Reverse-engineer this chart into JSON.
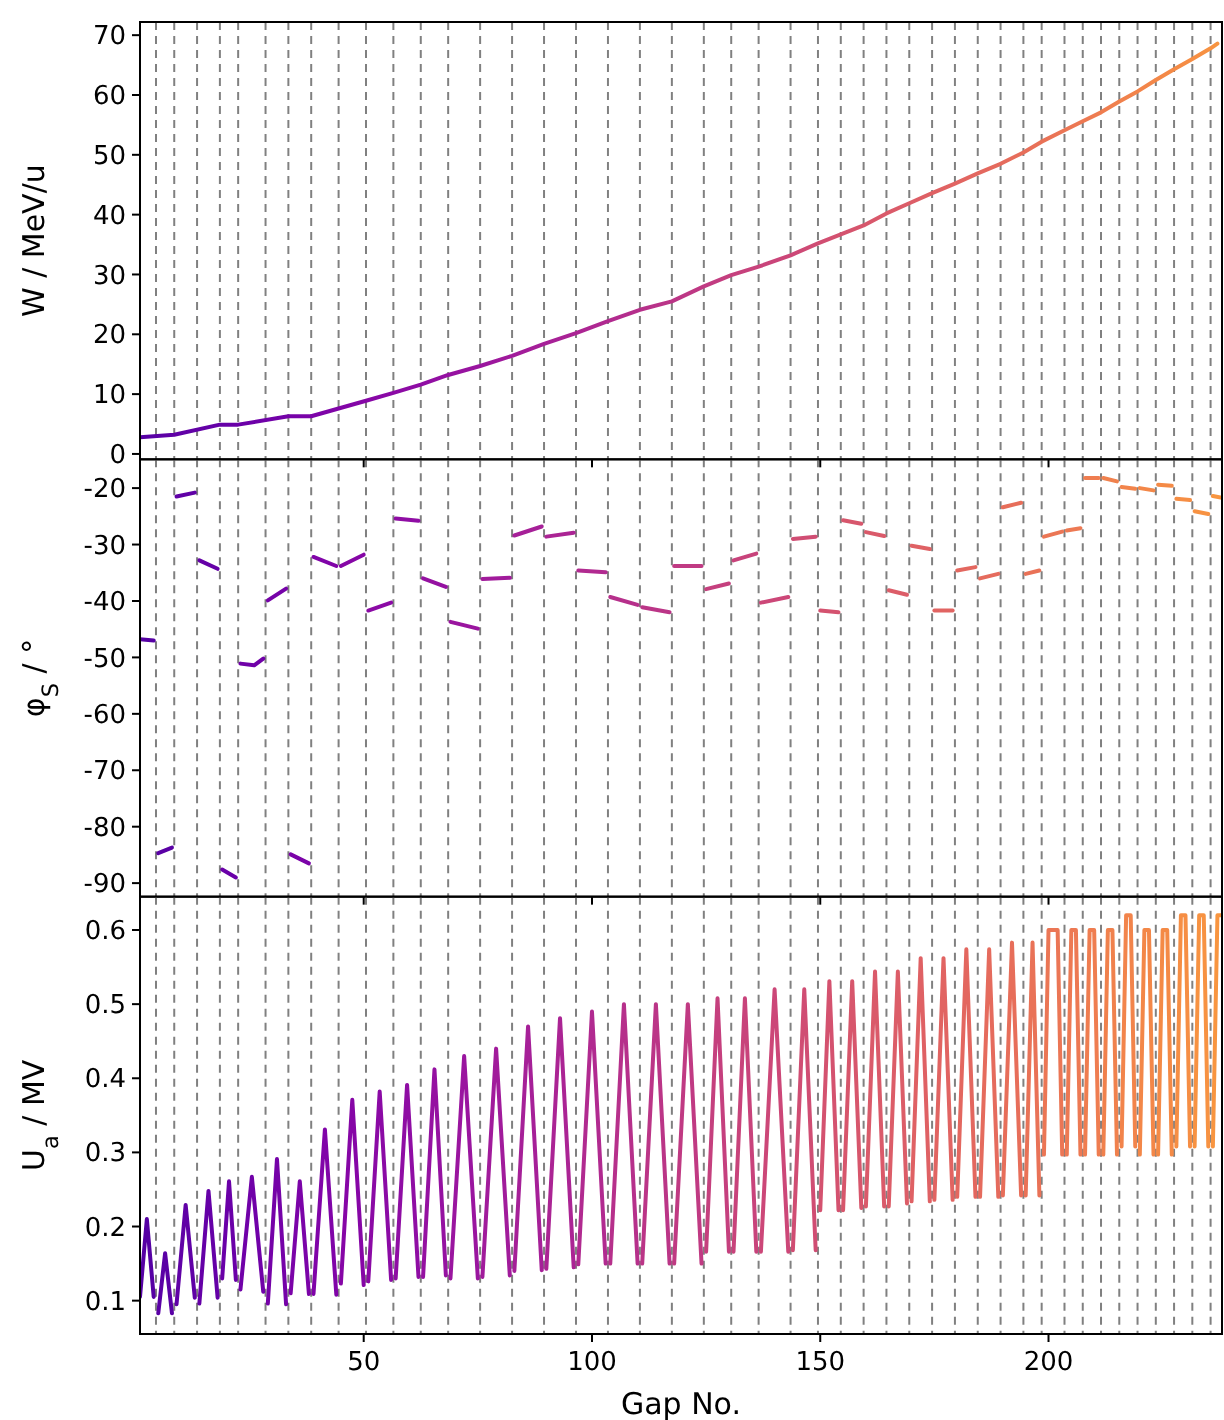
{
  "chart_data": [
    {
      "type": "line",
      "ylabel": "W / MeV/u",
      "xlim": [
        1,
        238
      ],
      "xticks": [
        50,
        100,
        150,
        200
      ],
      "ylim": [
        -0.9,
        72.2
      ],
      "yticks": [
        0,
        10,
        20,
        30,
        40,
        50,
        60,
        70
      ],
      "tick_labels": "y",
      "series": [
        {
          "x": [
            1,
            8.5,
            18.5,
            22.5,
            33.5,
            38.5,
            50.5,
            56.5,
            62.5,
            68.5,
            75.5,
            82.5,
            89.5,
            96.5,
            103.5,
            110.5,
            117.5,
            124.5,
            130.5,
            136.5,
            143.5,
            149.5,
            154.5,
            159.5,
            164.5,
            169.5,
            174.5,
            179.5,
            184.5,
            189.5,
            194.5,
            198.5,
            203.5,
            207.5,
            211.5,
            215.5,
            219.5,
            223.5,
            227.5,
            231.5,
            235.5,
            237
          ],
          "values": [
            2.8,
            3.2,
            4.9,
            4.9,
            6.3,
            6.3,
            8.9,
            10.2,
            11.6,
            13.2,
            14.7,
            16.4,
            18.4,
            20.2,
            22.2,
            24.1,
            25.5,
            28.0,
            29.9,
            31.3,
            33.2,
            35.2,
            36.7,
            38.2,
            40.2,
            41.9,
            43.6,
            45.2,
            46.9,
            48.5,
            50.4,
            52.2,
            54.1,
            55.6,
            57.1,
            58.9,
            60.6,
            62.5,
            64.3,
            66.0,
            67.8,
            68.6
          ],
          "colors": [
            "#5601a4",
            "#6001a6",
            "#6500a7",
            "#6a00a8",
            "#7502a8",
            "#7b03a8",
            "#8606a6",
            "#8b0aa5",
            "#8f0da4",
            "#9511a1",
            "#9a159f",
            "#a11b9b",
            "#a62098",
            "#ab2494",
            "#b12a90",
            "#b6308b",
            "#bb3587",
            "#c03a83",
            "#c5407e",
            "#c8437b",
            "#cc4778",
            "#d04d73",
            "#d4526f",
            "#d7566c",
            "#da5a6a",
            "#dc5d68",
            "#df6164",
            "#e16462",
            "#e3675f",
            "#e56b5d",
            "#e76e5a",
            "#e97257",
            "#eb7655",
            "#ed7953",
            "#ef7d50",
            "#f0814d",
            "#f2844b",
            "#f38748",
            "#f48a46",
            "#f68e44",
            "#f79242",
            "#f89540"
          ]
        }
      ],
      "ref_lines": [
        {
          "axis": "x",
          "value": 4.5
        },
        {
          "axis": "x",
          "value": 8.5
        },
        {
          "axis": "x",
          "value": 13.5
        },
        {
          "axis": "x",
          "value": 18.5
        },
        {
          "axis": "x",
          "value": 22.5
        },
        {
          "axis": "x",
          "value": 28.5
        },
        {
          "axis": "x",
          "value": 33.5
        },
        {
          "axis": "x",
          "value": 38.5
        },
        {
          "axis": "x",
          "value": 44.5
        },
        {
          "axis": "x",
          "value": 50.5
        },
        {
          "axis": "x",
          "value": 56.5
        },
        {
          "axis": "x",
          "value": 62.5
        },
        {
          "axis": "x",
          "value": 68.5
        },
        {
          "axis": "x",
          "value": 75.5
        },
        {
          "axis": "x",
          "value": 82.5
        },
        {
          "axis": "x",
          "value": 89.5
        },
        {
          "axis": "x",
          "value": 96.5
        },
        {
          "axis": "x",
          "value": 103.5
        },
        {
          "axis": "x",
          "value": 110.5
        },
        {
          "axis": "x",
          "value": 117.5
        },
        {
          "axis": "x",
          "value": 124.5
        },
        {
          "axis": "x",
          "value": 130.5
        },
        {
          "axis": "x",
          "value": 136.5
        },
        {
          "axis": "x",
          "value": 143.5
        },
        {
          "axis": "x",
          "value": 149.5
        },
        {
          "axis": "x",
          "value": 154.5
        },
        {
          "axis": "x",
          "value": 159.5
        },
        {
          "axis": "x",
          "value": 164.5
        },
        {
          "axis": "x",
          "value": 169.5
        },
        {
          "axis": "x",
          "value": 174.5
        },
        {
          "axis": "x",
          "value": 179.5
        },
        {
          "axis": "x",
          "value": 184.5
        },
        {
          "axis": "x",
          "value": 189.5
        },
        {
          "axis": "x",
          "value": 194.5
        },
        {
          "axis": "x",
          "value": 198.5
        },
        {
          "axis": "x",
          "value": 203.5
        },
        {
          "axis": "x",
          "value": 207.5
        },
        {
          "axis": "x",
          "value": 211.5
        },
        {
          "axis": "x",
          "value": 215.5
        },
        {
          "axis": "x",
          "value": 219.5
        },
        {
          "axis": "x",
          "value": 223.5
        },
        {
          "axis": "x",
          "value": 227.5
        },
        {
          "axis": "x",
          "value": 231.5
        },
        {
          "axis": "x",
          "value": 235.5
        }
      ]
    },
    {
      "type": "line",
      "ylabel": "φ$_{S}$ / °",
      "xlim": [
        1,
        238
      ],
      "xticks": [
        50,
        100,
        150,
        200
      ],
      "ylim": [
        -92.4,
        -14.9
      ],
      "yticks": [
        -20,
        -30,
        -40,
        -50,
        -60,
        -70,
        -80,
        -90
      ],
      "tick_labels": "y",
      "series": [
        {
          "color": "#5601a4",
          "x": [
            1,
            4
          ],
          "values": [
            -46.8,
            -47.0
          ]
        },
        {
          "color": "#5a01a5",
          "x": [
            5,
            8
          ],
          "values": [
            -84.7,
            -83.7
          ]
        },
        {
          "color": "#6001a6",
          "x": [
            9,
            13
          ],
          "values": [
            -21.5,
            -20.8
          ]
        },
        {
          "color": "#6500a7",
          "x": [
            14,
            18
          ],
          "values": [
            -32.8,
            -34.3
          ]
        },
        {
          "color": "#6a00a8",
          "x": [
            19,
            22
          ],
          "values": [
            -87.6,
            -89.0
          ]
        },
        {
          "color": "#7001a8",
          "x": [
            23,
            26,
            28
          ],
          "values": [
            -51.1,
            -51.4,
            -50.2
          ]
        },
        {
          "color": "#7502a8",
          "x": [
            29,
            33
          ],
          "values": [
            -39.9,
            -37.8
          ]
        },
        {
          "color": "#7b03a8",
          "x": [
            34,
            38
          ],
          "values": [
            -84.9,
            -86.5
          ]
        },
        {
          "color": "#8004a8",
          "x": [
            39,
            44
          ],
          "values": [
            -32.2,
            -33.8
          ]
        },
        {
          "color": "#8606a6",
          "x": [
            45,
            50
          ],
          "values": [
            -33.8,
            -31.8
          ]
        },
        {
          "color": "#8b0aa5",
          "x": [
            51,
            56
          ],
          "values": [
            -41.7,
            -40.3
          ]
        },
        {
          "color": "#8f0da4",
          "x": [
            57,
            62
          ],
          "values": [
            -25.4,
            -25.8
          ]
        },
        {
          "color": "#9511a1",
          "x": [
            63,
            68
          ],
          "values": [
            -36.0,
            -37.5
          ]
        },
        {
          "color": "#9a159f",
          "x": [
            69,
            75
          ],
          "values": [
            -43.7,
            -44.9
          ]
        },
        {
          "color": "#a11b9b",
          "x": [
            76,
            82
          ],
          "values": [
            -36.1,
            -35.9
          ]
        },
        {
          "color": "#a62098",
          "x": [
            83,
            89
          ],
          "values": [
            -28.4,
            -26.8
          ]
        },
        {
          "color": "#ab2494",
          "x": [
            90,
            96
          ],
          "values": [
            -28.6,
            -27.9
          ]
        },
        {
          "color": "#b12a90",
          "x": [
            97,
            103
          ],
          "values": [
            -34.6,
            -34.9
          ]
        },
        {
          "color": "#b6308b",
          "x": [
            104,
            110
          ],
          "values": [
            -39.3,
            -40.7
          ]
        },
        {
          "color": "#bb3587",
          "x": [
            111,
            117
          ],
          "values": [
            -41.1,
            -42.0
          ]
        },
        {
          "color": "#c03a83",
          "x": [
            118,
            124
          ],
          "values": [
            -33.8,
            -33.8
          ]
        },
        {
          "color": "#c5407e",
          "x": [
            125,
            130
          ],
          "values": [
            -37.9,
            -36.9
          ]
        },
        {
          "color": "#c8437b",
          "x": [
            131,
            136
          ],
          "values": [
            -32.8,
            -31.6
          ]
        },
        {
          "color": "#cc4778",
          "x": [
            137,
            143
          ],
          "values": [
            -40.3,
            -39.3
          ]
        },
        {
          "color": "#d04d73",
          "x": [
            144,
            149
          ],
          "values": [
            -29.0,
            -28.6
          ]
        },
        {
          "color": "#d4526f",
          "x": [
            150,
            154
          ],
          "values": [
            -41.7,
            -42.0
          ]
        },
        {
          "color": "#d7566c",
          "x": [
            155,
            159
          ],
          "values": [
            -25.7,
            -26.3
          ]
        },
        {
          "color": "#da5a6a",
          "x": [
            160,
            164
          ],
          "values": [
            -27.8,
            -28.5
          ]
        },
        {
          "color": "#dc5d68",
          "x": [
            165,
            169
          ],
          "values": [
            -38.1,
            -38.9
          ]
        },
        {
          "color": "#df6164",
          "x": [
            170,
            174
          ],
          "values": [
            -30.2,
            -30.8
          ]
        },
        {
          "color": "#e16462",
          "x": [
            175,
            179
          ],
          "values": [
            -41.7,
            -41.7
          ]
        },
        {
          "color": "#e3675f",
          "x": [
            180,
            184
          ],
          "values": [
            -34.6,
            -34.0
          ]
        },
        {
          "color": "#e56b5d",
          "x": [
            185,
            189
          ],
          "values": [
            -36.0,
            -35.2
          ]
        },
        {
          "color": "#e76e5a",
          "x": [
            190,
            194
          ],
          "values": [
            -23.4,
            -22.6
          ]
        },
        {
          "color": "#e97257",
          "x": [
            195,
            198
          ],
          "values": [
            -35.2,
            -34.6
          ]
        },
        {
          "color": "#eb7655",
          "x": [
            199,
            203
          ],
          "values": [
            -28.6,
            -27.7
          ]
        },
        {
          "color": "#ed7953",
          "x": [
            204,
            207
          ],
          "values": [
            -27.5,
            -27.1
          ]
        },
        {
          "color": "#ef7d50",
          "x": [
            208,
            211
          ],
          "values": [
            -18.2,
            -18.2
          ]
        },
        {
          "color": "#f0814d",
          "x": [
            212,
            215
          ],
          "values": [
            -18.2,
            -18.8
          ]
        },
        {
          "color": "#f2844b",
          "x": [
            216,
            219
          ],
          "values": [
            -19.8,
            -20.1
          ]
        },
        {
          "color": "#f38748",
          "x": [
            220,
            223
          ],
          "values": [
            -20.0,
            -20.4
          ]
        },
        {
          "color": "#f48a46",
          "x": [
            224,
            227
          ],
          "values": [
            -19.4,
            -19.6
          ]
        },
        {
          "color": "#f68e44",
          "x": [
            228,
            231
          ],
          "values": [
            -21.9,
            -22.1
          ]
        },
        {
          "color": "#f79242",
          "x": [
            232,
            235
          ],
          "values": [
            -24.1,
            -24.6
          ]
        },
        {
          "color": "#f89540",
          "x": [
            236,
            238
          ],
          "values": [
            -21.4,
            -21.7
          ]
        }
      ],
      "ref_lines": [
        {
          "axis": "x",
          "value": 4.5
        },
        {
          "axis": "x",
          "value": 8.5
        },
        {
          "axis": "x",
          "value": 13.5
        },
        {
          "axis": "x",
          "value": 18.5
        },
        {
          "axis": "x",
          "value": 22.5
        },
        {
          "axis": "x",
          "value": 28.5
        },
        {
          "axis": "x",
          "value": 33.5
        },
        {
          "axis": "x",
          "value": 38.5
        },
        {
          "axis": "x",
          "value": 44.5
        },
        {
          "axis": "x",
          "value": 50.5
        },
        {
          "axis": "x",
          "value": 56.5
        },
        {
          "axis": "x",
          "value": 62.5
        },
        {
          "axis": "x",
          "value": 68.5
        },
        {
          "axis": "x",
          "value": 75.5
        },
        {
          "axis": "x",
          "value": 82.5
        },
        {
          "axis": "x",
          "value": 89.5
        },
        {
          "axis": "x",
          "value": 96.5
        },
        {
          "axis": "x",
          "value": 103.5
        },
        {
          "axis": "x",
          "value": 110.5
        },
        {
          "axis": "x",
          "value": 117.5
        },
        {
          "axis": "x",
          "value": 124.5
        },
        {
          "axis": "x",
          "value": 130.5
        },
        {
          "axis": "x",
          "value": 136.5
        },
        {
          "axis": "x",
          "value": 143.5
        },
        {
          "axis": "x",
          "value": 149.5
        },
        {
          "axis": "x",
          "value": 154.5
        },
        {
          "axis": "x",
          "value": 159.5
        },
        {
          "axis": "x",
          "value": 164.5
        },
        {
          "axis": "x",
          "value": 169.5
        },
        {
          "axis": "x",
          "value": 174.5
        },
        {
          "axis": "x",
          "value": 179.5
        },
        {
          "axis": "x",
          "value": 184.5
        },
        {
          "axis": "x",
          "value": 189.5
        },
        {
          "axis": "x",
          "value": 194.5
        },
        {
          "axis": "x",
          "value": 198.5
        },
        {
          "axis": "x",
          "value": 203.5
        },
        {
          "axis": "x",
          "value": 207.5
        },
        {
          "axis": "x",
          "value": 211.5
        },
        {
          "axis": "x",
          "value": 215.5
        },
        {
          "axis": "x",
          "value": 219.5
        },
        {
          "axis": "x",
          "value": 223.5
        },
        {
          "axis": "x",
          "value": 227.5
        },
        {
          "axis": "x",
          "value": 231.5
        },
        {
          "axis": "x",
          "value": 235.5
        }
      ]
    },
    {
      "type": "line",
      "xlabel": "Gap No.",
      "ylabel": "U$_{a}$ / MV",
      "xlim": [
        1,
        238
      ],
      "xticks": [
        50,
        100,
        150,
        200
      ],
      "ylim": [
        0.055,
        0.645
      ],
      "yticks": [
        0.1,
        0.2,
        0.3,
        0.4,
        0.5,
        0.6
      ],
      "series": [
        {
          "color": "#5601a4",
          "x": [
            1,
            2.5,
            4
          ],
          "values": [
            0.105,
            0.21,
            0.105
          ]
        },
        {
          "color": "#5a01a5",
          "x": [
            5,
            6.5,
            8
          ],
          "values": [
            0.083,
            0.164,
            0.083
          ]
        },
        {
          "color": "#6001a6",
          "x": [
            9,
            11,
            13
          ],
          "values": [
            0.095,
            0.229,
            0.104
          ]
        },
        {
          "color": "#6500a7",
          "x": [
            14,
            16,
            18
          ],
          "values": [
            0.096,
            0.248,
            0.104
          ]
        },
        {
          "color": "#6a00a8",
          "x": [
            19,
            20.5,
            22
          ],
          "values": [
            0.13,
            0.261,
            0.128
          ]
        },
        {
          "color": "#7001a8",
          "x": [
            23,
            25.5,
            28
          ],
          "values": [
            0.115,
            0.267,
            0.112
          ]
        },
        {
          "color": "#7502a8",
          "x": [
            29,
            31,
            33
          ],
          "values": [
            0.096,
            0.291,
            0.095
          ]
        },
        {
          "color": "#7b03a8",
          "x": [
            34,
            36,
            38
          ],
          "values": [
            0.11,
            0.261,
            0.109
          ]
        },
        {
          "color": "#8004a8",
          "x": [
            39,
            41.5,
            44
          ],
          "values": [
            0.109,
            0.331,
            0.108
          ]
        },
        {
          "color": "#8606a6",
          "x": [
            45,
            47.5,
            50
          ],
          "values": [
            0.123,
            0.371,
            0.121
          ]
        },
        {
          "color": "#8b0aa5",
          "x": [
            51,
            53.5,
            56
          ],
          "values": [
            0.126,
            0.382,
            0.128
          ]
        },
        {
          "color": "#8f0da4",
          "x": [
            57,
            59.5,
            62
          ],
          "values": [
            0.13,
            0.391,
            0.132
          ]
        },
        {
          "color": "#9511a1",
          "x": [
            63,
            65.5,
            68
          ],
          "values": [
            0.132,
            0.412,
            0.134
          ]
        },
        {
          "color": "#9a159f",
          "x": [
            69,
            72,
            75
          ],
          "values": [
            0.13,
            0.43,
            0.13
          ]
        },
        {
          "color": "#a11b9b",
          "x": [
            76,
            79,
            82
          ],
          "values": [
            0.132,
            0.44,
            0.134
          ]
        },
        {
          "color": "#a62098",
          "x": [
            83,
            86,
            89
          ],
          "values": [
            0.14,
            0.47,
            0.141
          ]
        },
        {
          "color": "#ab2494",
          "x": [
            90,
            93,
            96
          ],
          "values": [
            0.143,
            0.481,
            0.145
          ]
        },
        {
          "color": "#b12a90",
          "x": [
            97,
            100,
            103
          ],
          "values": [
            0.149,
            0.49,
            0.15
          ]
        },
        {
          "color": "#b6308b",
          "x": [
            104,
            107,
            110
          ],
          "values": [
            0.15,
            0.5,
            0.15
          ]
        },
        {
          "color": "#bb3587",
          "x": [
            111,
            114,
            117
          ],
          "values": [
            0.15,
            0.5,
            0.15
          ]
        },
        {
          "color": "#c03a83",
          "x": [
            118,
            121,
            124
          ],
          "values": [
            0.15,
            0.5,
            0.15
          ]
        },
        {
          "color": "#c5407e",
          "x": [
            125,
            127.5,
            130
          ],
          "values": [
            0.166,
            0.508,
            0.166
          ]
        },
        {
          "color": "#c8437b",
          "x": [
            131,
            133.5,
            136
          ],
          "values": [
            0.166,
            0.508,
            0.166
          ]
        },
        {
          "color": "#cc4778",
          "x": [
            137,
            140,
            143
          ],
          "values": [
            0.166,
            0.52,
            0.166
          ]
        },
        {
          "color": "#d04d73",
          "x": [
            144,
            146.5,
            149
          ],
          "values": [
            0.168,
            0.52,
            0.168
          ]
        },
        {
          "color": "#d4526f",
          "x": [
            150,
            152,
            154
          ],
          "values": [
            0.222,
            0.531,
            0.222
          ]
        },
        {
          "color": "#d7566c",
          "x": [
            155,
            157,
            159
          ],
          "values": [
            0.222,
            0.531,
            0.225
          ]
        },
        {
          "color": "#da5a6a",
          "x": [
            160,
            162,
            164
          ],
          "values": [
            0.227,
            0.544,
            0.227
          ]
        },
        {
          "color": "#dc5d68",
          "x": [
            165,
            167,
            169
          ],
          "values": [
            0.227,
            0.544,
            0.231
          ]
        },
        {
          "color": "#df6164",
          "x": [
            170,
            172,
            174
          ],
          "values": [
            0.234,
            0.562,
            0.234
          ]
        },
        {
          "color": "#e16462",
          "x": [
            175,
            177,
            179
          ],
          "values": [
            0.236,
            0.562,
            0.236
          ]
        },
        {
          "color": "#e3675f",
          "x": [
            180,
            182,
            184
          ],
          "values": [
            0.24,
            0.574,
            0.24
          ]
        },
        {
          "color": "#e56b5d",
          "x": [
            185,
            187,
            189
          ],
          "values": [
            0.24,
            0.574,
            0.24
          ]
        },
        {
          "color": "#e76e5a",
          "x": [
            190,
            192,
            194
          ],
          "values": [
            0.242,
            0.583,
            0.242
          ]
        },
        {
          "color": "#e97257",
          "x": [
            195,
            196.5,
            198
          ],
          "values": [
            0.242,
            0.583,
            0.242
          ]
        },
        {
          "color": "#eb7655",
          "x": [
            199,
            200,
            202,
            203
          ],
          "values": [
            0.297,
            0.6,
            0.6,
            0.297
          ]
        },
        {
          "color": "#ed7953",
          "x": [
            204,
            205,
            206,
            207
          ],
          "values": [
            0.297,
            0.6,
            0.6,
            0.297
          ]
        },
        {
          "color": "#ef7d50",
          "x": [
            208,
            209,
            210,
            211
          ],
          "values": [
            0.297,
            0.6,
            0.6,
            0.297
          ]
        },
        {
          "color": "#f0814d",
          "x": [
            212,
            213,
            214,
            215
          ],
          "values": [
            0.297,
            0.6,
            0.6,
            0.297
          ]
        },
        {
          "color": "#f2844b",
          "x": [
            216,
            217,
            218,
            219
          ],
          "values": [
            0.308,
            0.62,
            0.62,
            0.308
          ]
        },
        {
          "color": "#f38748",
          "x": [
            220,
            221,
            222,
            223
          ],
          "values": [
            0.297,
            0.6,
            0.6,
            0.297
          ]
        },
        {
          "color": "#f48a46",
          "x": [
            224,
            225,
            226,
            227
          ],
          "values": [
            0.297,
            0.6,
            0.6,
            0.297
          ]
        },
        {
          "color": "#f68e44",
          "x": [
            228,
            229,
            230,
            231
          ],
          "values": [
            0.308,
            0.62,
            0.62,
            0.308
          ]
        },
        {
          "color": "#f79242",
          "x": [
            232,
            233,
            234,
            235
          ],
          "values": [
            0.308,
            0.62,
            0.62,
            0.308
          ]
        },
        {
          "color": "#f89540",
          "x": [
            236,
            237,
            238
          ],
          "values": [
            0.308,
            0.62,
            0.62
          ]
        }
      ],
      "ref_lines": [
        {
          "axis": "x",
          "value": 4.5
        },
        {
          "axis": "x",
          "value": 8.5
        },
        {
          "axis": "x",
          "value": 13.5
        },
        {
          "axis": "x",
          "value": 18.5
        },
        {
          "axis": "x",
          "value": 22.5
        },
        {
          "axis": "x",
          "value": 28.5
        },
        {
          "axis": "x",
          "value": 33.5
        },
        {
          "axis": "x",
          "value": 38.5
        },
        {
          "axis": "x",
          "value": 44.5
        },
        {
          "axis": "x",
          "value": 50.5
        },
        {
          "axis": "x",
          "value": 56.5
        },
        {
          "axis": "x",
          "value": 62.5
        },
        {
          "axis": "x",
          "value": 68.5
        },
        {
          "axis": "x",
          "value": 75.5
        },
        {
          "axis": "x",
          "value": 82.5
        },
        {
          "axis": "x",
          "value": 89.5
        },
        {
          "axis": "x",
          "value": 96.5
        },
        {
          "axis": "x",
          "value": 103.5
        },
        {
          "axis": "x",
          "value": 110.5
        },
        {
          "axis": "x",
          "value": 117.5
        },
        {
          "axis": "x",
          "value": 124.5
        },
        {
          "axis": "x",
          "value": 130.5
        },
        {
          "axis": "x",
          "value": 136.5
        },
        {
          "axis": "x",
          "value": 143.5
        },
        {
          "axis": "x",
          "value": 149.5
        },
        {
          "axis": "x",
          "value": 154.5
        },
        {
          "axis": "x",
          "value": 159.5
        },
        {
          "axis": "x",
          "value": 164.5
        },
        {
          "axis": "x",
          "value": 169.5
        },
        {
          "axis": "x",
          "value": 174.5
        },
        {
          "axis": "x",
          "value": 179.5
        },
        {
          "axis": "x",
          "value": 184.5
        },
        {
          "axis": "x",
          "value": 189.5
        },
        {
          "axis": "x",
          "value": 194.5
        },
        {
          "axis": "x",
          "value": 198.5
        },
        {
          "axis": "x",
          "value": 203.5
        },
        {
          "axis": "x",
          "value": 207.5
        },
        {
          "axis": "x",
          "value": 211.5
        },
        {
          "axis": "x",
          "value": 215.5
        },
        {
          "axis": "x",
          "value": 219.5
        },
        {
          "axis": "x",
          "value": 223.5
        },
        {
          "axis": "x",
          "value": 227.5
        },
        {
          "axis": "x",
          "value": 231.5
        },
        {
          "axis": "x",
          "value": 235.5
        }
      ]
    }
  ]
}
